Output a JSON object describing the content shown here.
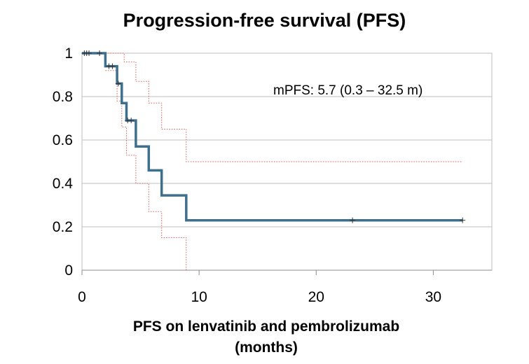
{
  "chart_data": {
    "type": "line",
    "title": "Progression-free survival (PFS)",
    "xlabel_line1": "PFS on lenvatinib and pembrolizumab",
    "xlabel_line2": "(months)",
    "ylabel": "",
    "xlim": [
      0,
      35
    ],
    "ylim": [
      0,
      1
    ],
    "x_ticks": [
      0,
      10,
      20,
      30
    ],
    "x_tick_labels": [
      "0",
      "10",
      "20",
      "30"
    ],
    "y_ticks": [
      0,
      0.2,
      0.4,
      0.6,
      0.8,
      1
    ],
    "y_tick_labels": [
      "0",
      "0.2",
      "0.4",
      "0.6",
      "0.8",
      "1"
    ],
    "grid": "horizontal",
    "legend": "none",
    "annotation": "mPFS: 5.7 (0.3 – 32.5 m)",
    "series": [
      {
        "role": "estimate",
        "style": "step",
        "color": "#3f6f8e",
        "points": [
          [
            0,
            1
          ],
          [
            2.0,
            1
          ],
          [
            2.0,
            0.94
          ],
          [
            3.0,
            0.94
          ],
          [
            3.0,
            0.86
          ],
          [
            3.4,
            0.86
          ],
          [
            3.4,
            0.77
          ],
          [
            3.8,
            0.77
          ],
          [
            3.8,
            0.69
          ],
          [
            4.6,
            0.69
          ],
          [
            4.6,
            0.57
          ],
          [
            5.7,
            0.57
          ],
          [
            5.7,
            0.46
          ],
          [
            6.8,
            0.46
          ],
          [
            6.8,
            0.345
          ],
          [
            8.9,
            0.345
          ],
          [
            8.9,
            0.23
          ],
          [
            32.5,
            0.23
          ]
        ]
      },
      {
        "role": "upper-ci",
        "style": "dotted",
        "color": "#e05a5a",
        "points": [
          [
            2.0,
            1
          ],
          [
            3.6,
            1
          ],
          [
            3.6,
            0.96
          ],
          [
            4.6,
            0.96
          ],
          [
            4.6,
            0.87
          ],
          [
            5.7,
            0.87
          ],
          [
            5.7,
            0.77
          ],
          [
            6.8,
            0.77
          ],
          [
            6.8,
            0.65
          ],
          [
            8.9,
            0.65
          ],
          [
            8.9,
            0.5
          ],
          [
            32.5,
            0.5
          ]
        ]
      },
      {
        "role": "lower-ci",
        "style": "dotted",
        "color": "#e05a5a",
        "points": [
          [
            2.0,
            0.92
          ],
          [
            3.0,
            0.92
          ],
          [
            3.0,
            0.78
          ],
          [
            3.4,
            0.78
          ],
          [
            3.4,
            0.66
          ],
          [
            3.8,
            0.66
          ],
          [
            3.8,
            0.53
          ],
          [
            4.6,
            0.53
          ],
          [
            4.6,
            0.4
          ],
          [
            5.7,
            0.4
          ],
          [
            5.7,
            0.27
          ],
          [
            6.8,
            0.27
          ],
          [
            6.8,
            0.15
          ],
          [
            8.9,
            0.15
          ],
          [
            8.9,
            0.04
          ],
          [
            8.9,
            0.0
          ]
        ]
      }
    ],
    "censor_marks": [
      [
        0.2,
        1
      ],
      [
        0.4,
        1
      ],
      [
        0.6,
        1
      ],
      [
        1.5,
        1
      ],
      [
        2.3,
        0.94
      ],
      [
        2.6,
        0.94
      ],
      [
        3.1,
        0.86
      ],
      [
        3.9,
        0.69
      ],
      [
        4.2,
        0.69
      ],
      [
        23.1,
        0.23
      ],
      [
        32.5,
        0.23
      ]
    ]
  }
}
